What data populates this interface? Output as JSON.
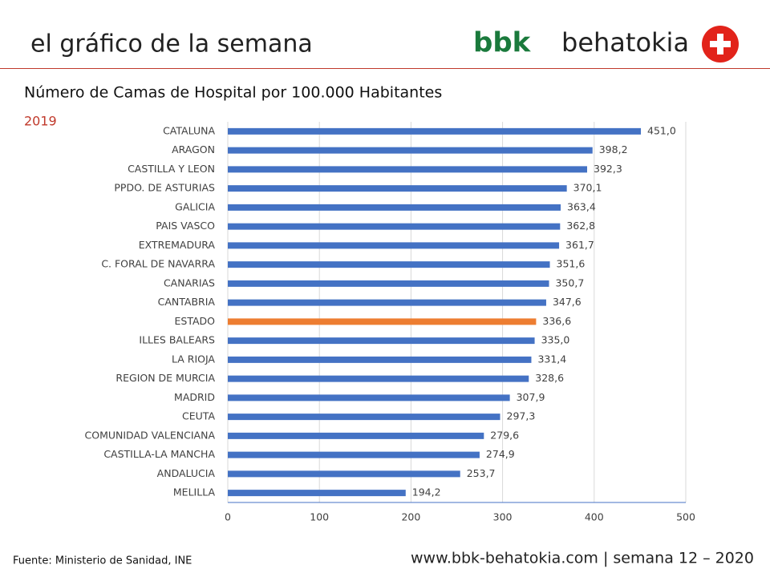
{
  "header": {
    "title": "el gráfico de la semana",
    "logo_bold": "bbk",
    "logo_text": "behatokia"
  },
  "chart_data": {
    "type": "hbar",
    "title": "Número de Camas de Hospital por 100.000 Habitantes",
    "subtitle": "2019",
    "categories": [
      "CATALUNA",
      "ARAGON",
      "CASTILLA Y LEON",
      "PPDO. DE ASTURIAS",
      "GALICIA",
      "PAIS VASCO",
      "EXTREMADURA",
      "C. FORAL DE NAVARRA",
      "CANARIAS",
      "CANTABRIA",
      "ESTADO",
      "ILLES BALEARS",
      "LA RIOJA",
      "REGION DE MURCIA",
      "MADRID",
      "CEUTA",
      "COMUNIDAD VALENCIANA",
      "CASTILLA-LA MANCHA",
      "ANDALUCIA",
      "MELILLA"
    ],
    "values": [
      451.0,
      398.2,
      392.3,
      370.1,
      363.4,
      362.8,
      361.7,
      351.6,
      350.7,
      347.6,
      336.6,
      335.0,
      331.4,
      328.6,
      307.9,
      297.3,
      279.6,
      274.9,
      253.7,
      194.2
    ],
    "value_labels": [
      "451,0",
      "398,2",
      "392,3",
      "370,1",
      "363,4",
      "362,8",
      "361,7",
      "351,6",
      "350,7",
      "347,6",
      "336,6",
      "335,0",
      "331,4",
      "328,6",
      "307,9",
      "297,3",
      "279,6",
      "274,9",
      "253,7",
      "194,2"
    ],
    "colors": [
      "#4472c4",
      "#4472c4",
      "#4472c4",
      "#4472c4",
      "#4472c4",
      "#4472c4",
      "#4472c4",
      "#4472c4",
      "#4472c4",
      "#4472c4",
      "#ed7d31",
      "#4472c4",
      "#4472c4",
      "#4472c4",
      "#4472c4",
      "#4472c4",
      "#4472c4",
      "#4472c4",
      "#4472c4",
      "#4472c4"
    ],
    "xlim": [
      0,
      500
    ],
    "xticks": [
      0,
      100,
      200,
      300,
      400,
      500
    ],
    "grid": true
  },
  "footer": {
    "source": "Fuente:  Ministerio de Sanidad, INE",
    "site": "www.bbk-behatokia.com | semana 12 – 2020"
  }
}
